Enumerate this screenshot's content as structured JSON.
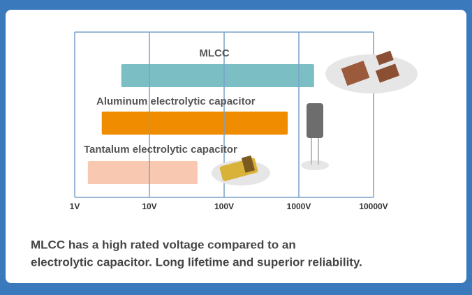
{
  "chart_data": {
    "type": "range-bar",
    "series": [
      {
        "name": "MLCC",
        "color": "#7bbfc4",
        "start": 4.2,
        "end": 1600
      },
      {
        "name": "Aluminum electrolytic capacitor",
        "color": "#f08c00",
        "start": 2.3,
        "end": 710
      },
      {
        "name": "Tantalum electrolytic capacitor",
        "color": "#f9c8b1",
        "start": 1.5,
        "end": 44
      }
    ],
    "xlim": [
      1,
      10000
    ],
    "log_x": true,
    "grid": true,
    "xticks": [
      {
        "value": 1,
        "label": "1V"
      },
      {
        "value": 10,
        "label": "10V"
      },
      {
        "value": 100,
        "label": "100V"
      },
      {
        "value": 1000,
        "label": "1000V"
      },
      {
        "value": 10000,
        "label": "10000V"
      }
    ],
    "caption": [
      "MLCC has a high rated voltage compared to an",
      "electrolytic capacitor. Long lifetime and superior reliability."
    ]
  }
}
